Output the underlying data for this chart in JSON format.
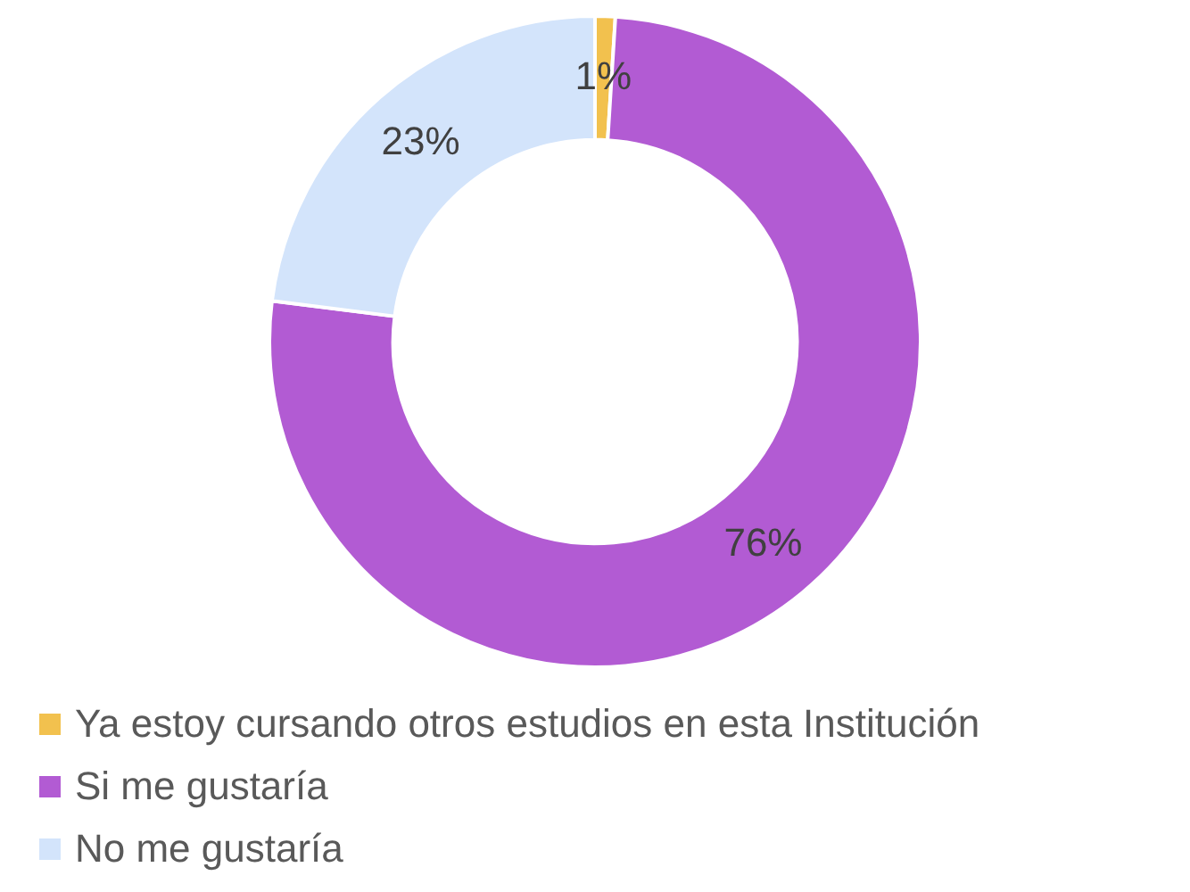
{
  "chart_data": {
    "type": "donut",
    "categories": [
      "Ya estoy cursando otros estudios en esta Institución",
      "Si me gustaría",
      "No me gustaría"
    ],
    "values": [
      1,
      76,
      23
    ],
    "colors": [
      "#f2c14e",
      "#b25bd3",
      "#d3e4fb"
    ],
    "value_labels": [
      "1%",
      "76%",
      "23%"
    ],
    "legend": "bottom"
  }
}
